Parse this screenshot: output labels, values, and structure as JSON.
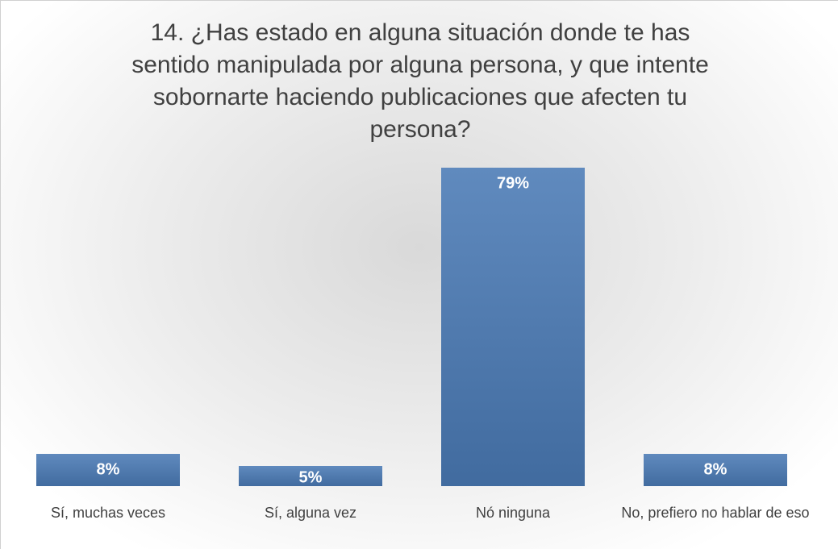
{
  "chart_data": {
    "type": "bar",
    "title": "14. ¿Has estado en alguna situación donde te has sentido manipulada por alguna persona, y que intente sobornarte haciendo publicaciones que afecten tu persona?",
    "categories": [
      "Sí, muchas veces",
      "Sí, alguna vez",
      "Nó ninguna",
      "No, prefiero no hablar de eso"
    ],
    "values": [
      8,
      5,
      79,
      8
    ],
    "value_labels": [
      "8%",
      "5%",
      "79%",
      "8%"
    ],
    "color": "#4a7ab5"
  }
}
